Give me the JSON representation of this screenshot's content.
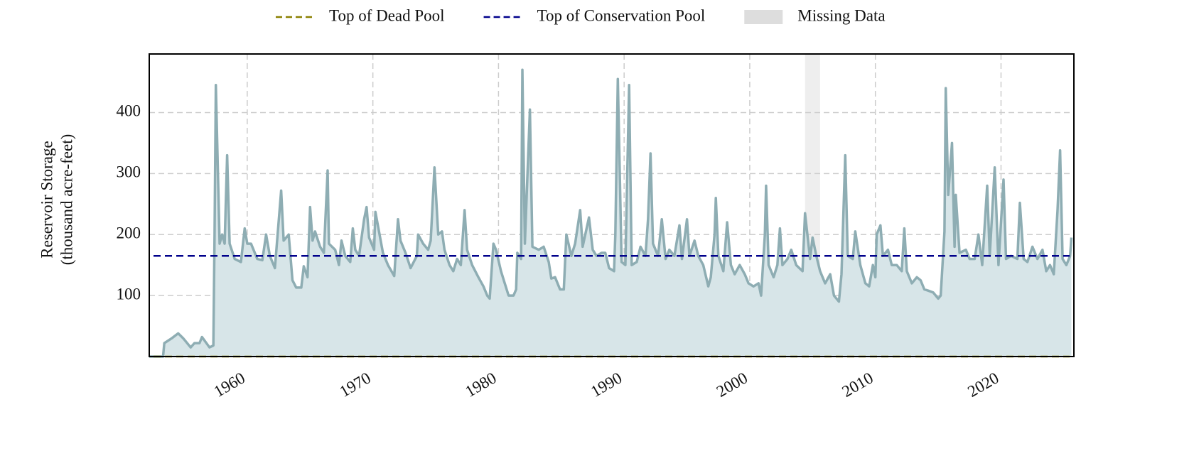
{
  "chart_data": {
    "type": "area-line",
    "ylabel": [
      "Reservoir Storage",
      "(thousand acre-feet)"
    ],
    "color": "#8eadb3",
    "fill_color": "#d7e5e8",
    "x": [
      1952.2,
      1953.3,
      1953.4,
      1954.0,
      1954.5,
      1954.9,
      1955.5,
      1955.8,
      1956.2,
      1956.4,
      1957.0,
      1957.3,
      1957.4,
      1957.5,
      1957.8,
      1958.0,
      1958.2,
      1958.4,
      1958.6,
      1959.0,
      1959.5,
      1959.8,
      1960.0,
      1960.3,
      1960.8,
      1961.2,
      1961.5,
      1961.8,
      1962.2,
      1962.7,
      1962.9,
      1963.3,
      1963.6,
      1963.9,
      1964.3,
      1964.5,
      1964.8,
      1965.0,
      1965.2,
      1965.4,
      1965.8,
      1966.1,
      1966.4,
      1966.5,
      1967.0,
      1967.3,
      1967.5,
      1967.8,
      1968.2,
      1968.4,
      1968.6,
      1968.9,
      1969.3,
      1969.5,
      1969.7,
      1970.1,
      1970.2,
      1970.4,
      1970.8,
      1971.2,
      1971.7,
      1972.0,
      1972.2,
      1972.6,
      1973.0,
      1973.5,
      1973.6,
      1974.0,
      1974.4,
      1974.6,
      1974.9,
      1975.2,
      1975.5,
      1975.7,
      1976.1,
      1976.4,
      1976.7,
      1977.0,
      1977.3,
      1977.5,
      1977.9,
      1978.4,
      1978.8,
      1979.1,
      1979.3,
      1979.6,
      1979.8,
      1980.2,
      1980.5,
      1980.8,
      1981.2,
      1981.4,
      1981.5,
      1981.8,
      1981.9,
      1982.1,
      1982.5,
      1982.7,
      1983.2,
      1983.6,
      1984.0,
      1984.2,
      1984.5,
      1984.9,
      1985.2,
      1985.4,
      1985.8,
      1986.1,
      1986.5,
      1986.7,
      1987.2,
      1987.5,
      1987.8,
      1988.2,
      1988.5,
      1988.8,
      1989.2,
      1989.3,
      1989.5,
      1989.8,
      1990.1,
      1990.4,
      1990.6,
      1991.0,
      1991.3,
      1991.7,
      1991.9,
      1992.1,
      1992.3,
      1992.7,
      1993.0,
      1993.3,
      1993.6,
      1994.0,
      1994.4,
      1994.6,
      1995.0,
      1995.2,
      1995.6,
      1995.9,
      1996.3,
      1996.7,
      1996.9,
      1997.2,
      1997.3,
      1997.5,
      1997.9,
      1998.2,
      1998.5,
      1998.8,
      1999.2,
      1999.6,
      1999.9,
      2000.3,
      2000.7,
      2000.9,
      2001.2,
      2001.3,
      2001.5,
      2001.9,
      2002.2,
      2002.4,
      2002.6,
      2003.0,
      2003.3,
      2003.7,
      2004.2,
      2004.4,
      2004.8,
      2005.0,
      2005.3,
      2005.6,
      2006.0,
      2006.4,
      2006.7,
      2007.1,
      2007.3,
      2007.6,
      2007.8,
      2008.2,
      2008.4,
      2008.8,
      2009.2,
      2009.5,
      2009.8,
      2010.0,
      2010.1,
      2010.4,
      2010.6,
      2011.0,
      2011.3,
      2011.7,
      2012.1,
      2012.3,
      2012.5,
      2012.9,
      2013.3,
      2013.6,
      2013.9,
      2014.2,
      2014.6,
      2015.0,
      2015.2,
      2015.5,
      2015.6,
      2015.8,
      2016.1,
      2016.3,
      2016.4,
      2016.7,
      2017.2,
      2017.5,
      2017.9,
      2018.2,
      2018.5,
      2018.9,
      2019.1,
      2019.5,
      2019.8,
      2020.2,
      2020.4,
      2020.8,
      2021.3,
      2021.5,
      2021.8,
      2022.1,
      2022.5,
      2022.9,
      2023.3,
      2023.6,
      2023.9,
      2024.2,
      2024.5,
      2024.7,
      2024.9,
      2025.2,
      2025.5,
      2025.6
    ],
    "values": [
      0,
      0,
      22,
      30,
      38,
      30,
      15,
      22,
      22,
      32,
      15,
      18,
      200,
      445,
      185,
      200,
      185,
      330,
      185,
      160,
      155,
      210,
      185,
      185,
      160,
      158,
      200,
      165,
      145,
      272,
      190,
      200,
      125,
      113,
      113,
      148,
      130,
      245,
      190,
      205,
      180,
      170,
      305,
      185,
      175,
      150,
      190,
      165,
      155,
      210,
      175,
      165,
      225,
      245,
      195,
      175,
      237,
      215,
      170,
      150,
      132,
      225,
      190,
      170,
      145,
      165,
      200,
      185,
      175,
      190,
      310,
      200,
      205,
      175,
      150,
      140,
      160,
      150,
      240,
      175,
      150,
      130,
      115,
      100,
      95,
      185,
      175,
      140,
      120,
      100,
      100,
      110,
      170,
      160,
      470,
      185,
      405,
      180,
      175,
      180,
      155,
      128,
      130,
      110,
      110,
      200,
      165,
      185,
      240,
      180,
      228,
      175,
      165,
      170,
      170,
      145,
      140,
      200,
      455,
      155,
      150,
      445,
      150,
      155,
      180,
      165,
      225,
      333,
      185,
      165,
      225,
      160,
      175,
      165,
      215,
      160,
      225,
      165,
      190,
      165,
      150,
      115,
      130,
      200,
      260,
      165,
      140,
      220,
      150,
      135,
      150,
      135,
      120,
      115,
      120,
      100,
      200,
      280,
      150,
      130,
      150,
      210,
      150,
      160,
      175,
      150,
      140,
      235,
      160,
      195,
      165,
      140,
      120,
      135,
      100,
      90,
      135,
      330,
      165,
      160,
      205,
      150,
      120,
      115,
      150,
      130,
      200,
      215,
      165,
      175,
      150,
      150,
      140,
      210,
      140,
      120,
      130,
      125,
      110,
      108,
      105,
      95,
      100,
      205,
      440,
      265,
      350,
      180,
      265,
      170,
      175,
      160,
      160,
      200,
      150,
      280,
      165,
      310,
      150,
      290,
      160,
      165,
      160,
      252,
      160,
      155,
      180,
      160,
      175,
      140,
      150,
      135,
      240,
      338,
      160,
      150,
      165,
      195
    ],
    "xlim": [
      1952.2,
      2025.8
    ],
    "ylim": [
      0,
      496
    ],
    "xticks": [
      1960,
      1970,
      1980,
      1990,
      2000,
      2010,
      2020
    ],
    "yticks": [
      100,
      200,
      300,
      400
    ],
    "grid": true,
    "reference_lines": [
      {
        "name": "Top of Dead Pool",
        "value": 0,
        "color": "#8b8000"
      },
      {
        "name": "Top of Conservation Pool",
        "value": 165,
        "color": "#00008b"
      }
    ],
    "missing": {
      "name": "Missing Data",
      "color": "#dddddd",
      "ranges": [
        [
          2004.4,
          2005.6
        ]
      ]
    }
  }
}
